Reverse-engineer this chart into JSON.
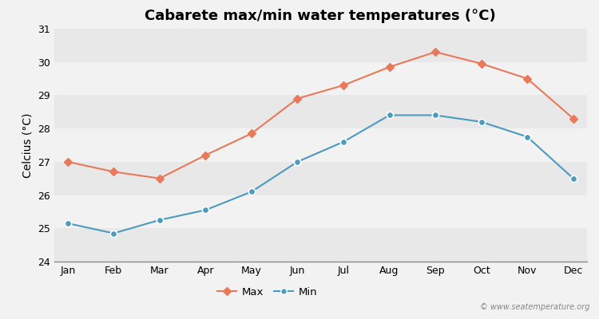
{
  "title": "Cabarete max/min water temperatures (°C)",
  "ylabel": "Celcius (°C)",
  "months": [
    "Jan",
    "Feb",
    "Mar",
    "Apr",
    "May",
    "Jun",
    "Jul",
    "Aug",
    "Sep",
    "Oct",
    "Nov",
    "Dec"
  ],
  "max_temps": [
    27.0,
    26.7,
    26.5,
    27.2,
    27.85,
    28.9,
    29.3,
    29.85,
    30.3,
    29.95,
    29.5,
    28.3
  ],
  "min_temps": [
    25.15,
    24.85,
    25.25,
    25.55,
    26.1,
    27.0,
    27.6,
    28.4,
    28.4,
    28.2,
    27.75,
    26.5
  ],
  "max_color": "#e8795a",
  "min_color": "#4a9bbf",
  "background_color": "#f2f2f2",
  "band_colors": [
    "#e8e8e8",
    "#f2f2f2"
  ],
  "ylim": [
    24,
    31
  ],
  "yticks": [
    24,
    25,
    26,
    27,
    28,
    29,
    30,
    31
  ],
  "legend_labels": [
    "Max",
    "Min"
  ],
  "watermark": "© www.seatemperature.org",
  "title_fontsize": 13,
  "axis_label_fontsize": 10,
  "tick_fontsize": 9
}
